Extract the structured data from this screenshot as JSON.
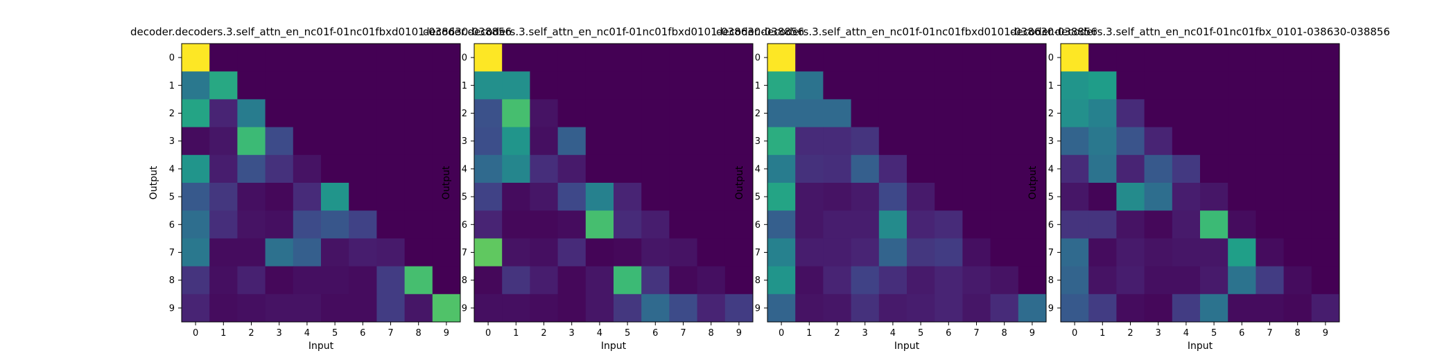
{
  "chart_data": [
    {
      "type": "heatmap",
      "title": "decoder.decoders.3.self_attn_en_nc01f-01nc01fbxd0101-038630-038856",
      "xlabel": "Input",
      "ylabel": "Output",
      "x_ticks": [
        "0",
        "1",
        "2",
        "3",
        "4",
        "5",
        "6",
        "7",
        "8",
        "9"
      ],
      "y_ticks": [
        "0",
        "1",
        "2",
        "3",
        "4",
        "5",
        "6",
        "7",
        "8",
        "9"
      ],
      "colormap": "viridis",
      "vmin": 0,
      "vmax": 1,
      "values": [
        [
          1.0,
          0,
          0,
          0,
          0,
          0,
          0,
          0,
          0,
          0
        ],
        [
          0.4,
          0.6,
          0,
          0,
          0,
          0,
          0,
          0,
          0,
          0
        ],
        [
          0.58,
          0.1,
          0.42,
          0,
          0,
          0,
          0,
          0,
          0,
          0
        ],
        [
          0.03,
          0.06,
          0.68,
          0.23,
          0,
          0,
          0,
          0,
          0,
          0
        ],
        [
          0.52,
          0.08,
          0.25,
          0.14,
          0.05,
          0,
          0,
          0,
          0,
          0
        ],
        [
          0.28,
          0.16,
          0.04,
          0.02,
          0.12,
          0.52,
          0,
          0,
          0,
          0
        ],
        [
          0.36,
          0.13,
          0.05,
          0.04,
          0.23,
          0.27,
          0.2,
          0,
          0,
          0
        ],
        [
          0.4,
          0.03,
          0.03,
          0.37,
          0.3,
          0.05,
          0.08,
          0.07,
          0,
          0
        ],
        [
          0.15,
          0.04,
          0.09,
          0.02,
          0.04,
          0.04,
          0.03,
          0.18,
          0.7,
          0
        ],
        [
          0.1,
          0.03,
          0.04,
          0.05,
          0.05,
          0.03,
          0.03,
          0.18,
          0.06,
          0.72
        ]
      ]
    },
    {
      "type": "heatmap",
      "title": "decoder.decoders.3.self_attn_en_nc01f-01nc01fbxd0101-038630-038856",
      "xlabel": "Input",
      "ylabel": "Output",
      "x_ticks": [
        "0",
        "1",
        "2",
        "3",
        "4",
        "5",
        "6",
        "7",
        "8",
        "9"
      ],
      "y_ticks": [
        "0",
        "1",
        "2",
        "3",
        "4",
        "5",
        "6",
        "7",
        "8",
        "9"
      ],
      "colormap": "viridis",
      "vmin": 0,
      "vmax": 1,
      "values": [
        [
          1.0,
          0,
          0,
          0,
          0,
          0,
          0,
          0,
          0,
          0
        ],
        [
          0.5,
          0.5,
          0,
          0,
          0,
          0,
          0,
          0,
          0,
          0
        ],
        [
          0.25,
          0.7,
          0.05,
          0,
          0,
          0,
          0,
          0,
          0,
          0
        ],
        [
          0.24,
          0.52,
          0.04,
          0.3,
          0,
          0,
          0,
          0,
          0,
          0
        ],
        [
          0.34,
          0.46,
          0.13,
          0.07,
          0,
          0,
          0,
          0,
          0,
          0
        ],
        [
          0.2,
          0.03,
          0.06,
          0.22,
          0.44,
          0.1,
          0,
          0,
          0,
          0
        ],
        [
          0.1,
          0.02,
          0.02,
          0.03,
          0.7,
          0.12,
          0.08,
          0,
          0,
          0
        ],
        [
          0.75,
          0.05,
          0.04,
          0.12,
          0.01,
          0.02,
          0.06,
          0.05,
          0,
          0
        ],
        [
          0.02,
          0.15,
          0.08,
          0.02,
          0.06,
          0.68,
          0.15,
          0.02,
          0.04,
          0
        ],
        [
          0.04,
          0.04,
          0.03,
          0.02,
          0.06,
          0.16,
          0.34,
          0.23,
          0.1,
          0.18
        ]
      ]
    },
    {
      "type": "heatmap",
      "title": "decoder.decoders.3.self_attn_en_nc01f-01nc01fbxd0101-038630-038856",
      "xlabel": "Input",
      "ylabel": "Output",
      "x_ticks": [
        "0",
        "1",
        "2",
        "3",
        "4",
        "5",
        "6",
        "7",
        "8",
        "9"
      ],
      "y_ticks": [
        "0",
        "1",
        "2",
        "3",
        "4",
        "5",
        "6",
        "7",
        "8",
        "9"
      ],
      "colormap": "viridis",
      "vmin": 0,
      "vmax": 1,
      "values": [
        [
          1.0,
          0,
          0,
          0,
          0,
          0,
          0,
          0,
          0,
          0
        ],
        [
          0.6,
          0.38,
          0,
          0,
          0,
          0,
          0,
          0,
          0,
          0
        ],
        [
          0.34,
          0.34,
          0.34,
          0,
          0,
          0,
          0,
          0,
          0,
          0
        ],
        [
          0.62,
          0.12,
          0.12,
          0.15,
          0,
          0,
          0,
          0,
          0,
          0
        ],
        [
          0.42,
          0.14,
          0.13,
          0.3,
          0.11,
          0,
          0,
          0,
          0,
          0
        ],
        [
          0.58,
          0.06,
          0.05,
          0.07,
          0.22,
          0.07,
          0,
          0,
          0,
          0
        ],
        [
          0.3,
          0.06,
          0.08,
          0.08,
          0.48,
          0.1,
          0.12,
          0,
          0,
          0
        ],
        [
          0.44,
          0.08,
          0.08,
          0.1,
          0.32,
          0.16,
          0.18,
          0.04,
          0,
          0
        ],
        [
          0.52,
          0.04,
          0.1,
          0.2,
          0.13,
          0.07,
          0.1,
          0.07,
          0.05,
          0
        ],
        [
          0.32,
          0.05,
          0.06,
          0.14,
          0.07,
          0.08,
          0.1,
          0.06,
          0.12,
          0.35
        ]
      ]
    },
    {
      "type": "heatmap",
      "title": "decoder.decoders.3.self_attn_en_nc01f-01nc01fbx_0101-038630-038856",
      "xlabel": "Input",
      "ylabel": "Output",
      "x_ticks": [
        "0",
        "1",
        "2",
        "3",
        "4",
        "5",
        "6",
        "7",
        "8",
        "9"
      ],
      "y_ticks": [
        "0",
        "1",
        "2",
        "3",
        "4",
        "5",
        "6",
        "7",
        "8",
        "9"
      ],
      "colormap": "viridis",
      "vmin": 0,
      "vmax": 1,
      "values": [
        [
          1.0,
          0,
          0,
          0,
          0,
          0,
          0,
          0,
          0,
          0
        ],
        [
          0.52,
          0.55,
          0,
          0,
          0,
          0,
          0,
          0,
          0,
          0
        ],
        [
          0.5,
          0.44,
          0.12,
          0,
          0,
          0,
          0,
          0,
          0,
          0
        ],
        [
          0.32,
          0.4,
          0.26,
          0.1,
          0,
          0,
          0,
          0,
          0,
          0
        ],
        [
          0.12,
          0.38,
          0.1,
          0.28,
          0.17,
          0,
          0,
          0,
          0,
          0
        ],
        [
          0.06,
          0.01,
          0.48,
          0.36,
          0.08,
          0.06,
          0,
          0,
          0,
          0
        ],
        [
          0.15,
          0.15,
          0.05,
          0.02,
          0.07,
          0.68,
          0.03,
          0,
          0,
          0
        ],
        [
          0.34,
          0.03,
          0.07,
          0.05,
          0.06,
          0.06,
          0.56,
          0.03,
          0,
          0
        ],
        [
          0.32,
          0.05,
          0.08,
          0.04,
          0.04,
          0.07,
          0.38,
          0.18,
          0.03,
          0
        ],
        [
          0.28,
          0.18,
          0.03,
          0.02,
          0.18,
          0.38,
          0.03,
          0.03,
          0.02,
          0.08
        ]
      ]
    }
  ]
}
